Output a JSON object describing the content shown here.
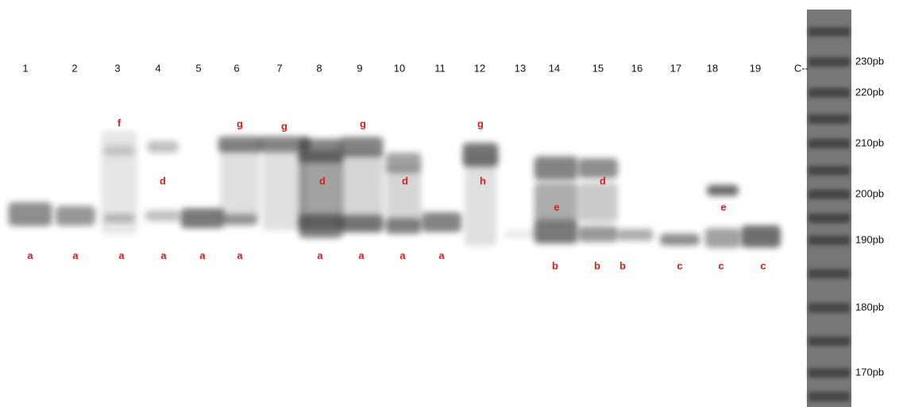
{
  "lanes": [
    {
      "label": "1",
      "bands": [
        "a"
      ]
    },
    {
      "label": "2",
      "bands": [
        "a"
      ]
    },
    {
      "label": "3",
      "bands": [
        "f",
        "a"
      ]
    },
    {
      "label": "4",
      "bands": [
        "d",
        "a"
      ]
    },
    {
      "label": "5",
      "bands": [
        "a"
      ]
    },
    {
      "label": "6",
      "bands": [
        "g",
        "a"
      ]
    },
    {
      "label": "7",
      "bands": [
        "g"
      ]
    },
    {
      "label": "8",
      "bands": [
        "d",
        "a"
      ]
    },
    {
      "label": "9",
      "bands": [
        "g",
        "a"
      ]
    },
    {
      "label": "10",
      "bands": [
        "d",
        "a"
      ]
    },
    {
      "label": "11",
      "bands": [
        "a"
      ]
    },
    {
      "label": "12",
      "bands": [
        "g",
        "h"
      ]
    },
    {
      "label": "13"
    },
    {
      "label": "14",
      "bands": [
        "e",
        "b"
      ]
    },
    {
      "label": "15",
      "bands": [
        "d",
        "b"
      ]
    },
    {
      "label": "16",
      "bands": [
        "b"
      ]
    },
    {
      "label": "17",
      "bands": [
        "c"
      ]
    },
    {
      "label": "18",
      "bands": [
        "e",
        "c"
      ]
    },
    {
      "label": "19",
      "bands": [
        "c"
      ]
    },
    {
      "label": "C--"
    }
  ],
  "ladder": {
    "labels": [
      "230pb",
      "220pb",
      "210pb",
      "200pb",
      "190pb",
      "180pb",
      "170pb"
    ]
  }
}
